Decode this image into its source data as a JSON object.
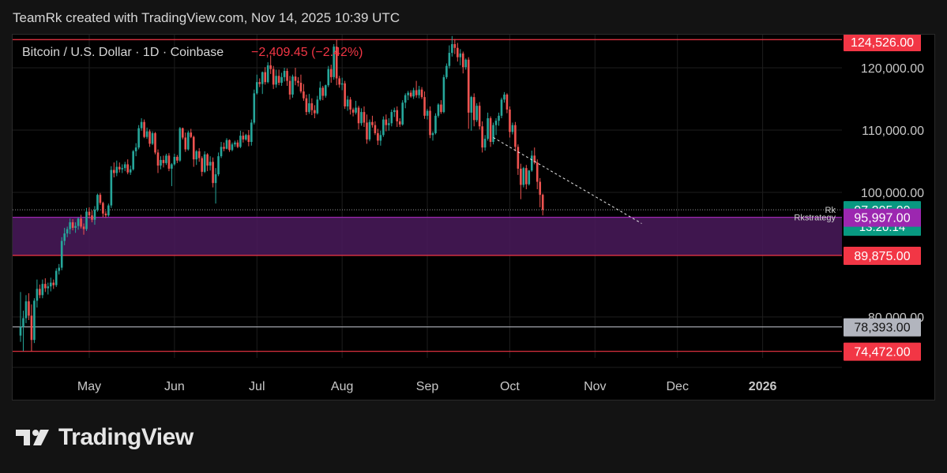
{
  "header": {
    "attribution": "TeamRk created with TradingView.com, Nov 14, 2025 10:39 UTC"
  },
  "footer": {
    "brand": "TradingView"
  },
  "colors": {
    "up": "#26a69a",
    "down": "#ef5350",
    "background": "#000000",
    "page": "#131313",
    "purple_zone": "#9c27b0",
    "grid": "#1e1e1e"
  },
  "chart_data": {
    "type": "candlestick",
    "legend": {
      "symbol": "Bitcoin / U.S. Dollar · 1D · Coinbase",
      "change": "−2,409.45 (−2.42%)"
    },
    "x_axis": {
      "ticks": [
        "May",
        "Jun",
        "Jul",
        "Aug",
        "Sep",
        "Oct",
        "Nov",
        "Dec",
        "2026"
      ],
      "bold_tick": "2026"
    },
    "y_axis": {
      "ticks": [
        "120,000.00",
        "110,000.00",
        "100,000.00",
        "80,000.00"
      ],
      "tick_values": [
        120000,
        110000,
        100000,
        80000
      ],
      "scale": "linear"
    },
    "price_labels": [
      {
        "value": 124526,
        "text": "124,526.00",
        "color": "#f23645",
        "line": true
      },
      {
        "value": 97205.09,
        "text": "97,205.09",
        "sub": "13:20:14",
        "color": "#089981",
        "line_label": "Rk",
        "dotted": true
      },
      {
        "value": 95997,
        "text": "95,997.00",
        "color": "#9c27b0",
        "line_label": "Rkstrategy",
        "zone_top": 95997,
        "zone_bottom": 89875
      },
      {
        "value": 89875,
        "text": "89,875.00",
        "color": "#f23645",
        "line": true
      },
      {
        "value": 78393,
        "text": "78,393.00",
        "color": "#b2b5be",
        "line": true
      },
      {
        "value": 74472,
        "text": "74,472.00",
        "color": "#f23645",
        "line": true
      }
    ],
    "trendline": {
      "from": [
        "2025-09-25",
        108800
      ],
      "to": [
        "2025-11-18",
        95000
      ],
      "style": "dashed"
    },
    "x_start": "2025-04-06",
    "ohlc": [
      [
        77000,
        84000,
        76000,
        78400
      ],
      [
        78400,
        81000,
        74500,
        79800
      ],
      [
        79800,
        83500,
        79000,
        82500
      ],
      [
        82500,
        83800,
        79500,
        80200
      ],
      [
        80200,
        82000,
        74472,
        76300
      ],
      [
        76300,
        83000,
        75800,
        82600
      ],
      [
        82600,
        86000,
        81500,
        84500
      ],
      [
        84500,
        85200,
        83000,
        83500
      ],
      [
        83500,
        86000,
        83000,
        85300
      ],
      [
        85300,
        86200,
        84000,
        84600
      ],
      [
        84600,
        85500,
        83600,
        84900
      ],
      [
        84900,
        86300,
        84100,
        85500
      ],
      [
        85500,
        86000,
        84500,
        85100
      ],
      [
        85100,
        87800,
        84800,
        87400
      ],
      [
        87400,
        88500,
        86800,
        87900
      ],
      [
        87900,
        92800,
        87500,
        92200
      ],
      [
        92200,
        94300,
        91500,
        93400
      ],
      [
        93400,
        94500,
        92800,
        94100
      ],
      [
        94100,
        95800,
        93300,
        95200
      ],
      [
        95200,
        95700,
        93900,
        94300
      ],
      [
        94300,
        95200,
        93500,
        94600
      ],
      [
        94600,
        96000,
        94000,
        95800
      ],
      [
        95800,
        96400,
        94200,
        94500
      ],
      [
        94500,
        95000,
        93200,
        94100
      ],
      [
        94100,
        97500,
        93800,
        96900
      ],
      [
        96900,
        97600,
        95800,
        96300
      ],
      [
        96300,
        97100,
        95200,
        95600
      ],
      [
        95600,
        97800,
        94800,
        97200
      ],
      [
        97200,
        99800,
        96900,
        99600
      ],
      [
        99600,
        99900,
        98000,
        98300
      ],
      [
        98300,
        98500,
        96000,
        96600
      ],
      [
        96600,
        97000,
        95900,
        96300
      ],
      [
        96300,
        98200,
        96100,
        97900
      ],
      [
        97900,
        104200,
        97500,
        103600
      ],
      [
        103600,
        104800,
        102400,
        103100
      ],
      [
        103100,
        105100,
        102600,
        104100
      ],
      [
        104100,
        104800,
        103200,
        103700
      ],
      [
        103700,
        104500,
        103100,
        103900
      ],
      [
        103900,
        104900,
        103400,
        104500
      ],
      [
        104500,
        105300,
        102900,
        103200
      ],
      [
        103200,
        104300,
        102800,
        103700
      ],
      [
        103700,
        106800,
        103500,
        106600
      ],
      [
        106600,
        107900,
        105800,
        107200
      ],
      [
        107200,
        110800,
        106900,
        110300
      ],
      [
        110300,
        111900,
        109900,
        111300
      ],
      [
        111300,
        111700,
        108700,
        108900
      ],
      [
        108900,
        110400,
        108600,
        109800
      ],
      [
        109800,
        110100,
        107300,
        107800
      ],
      [
        107800,
        109800,
        107600,
        109500
      ],
      [
        109500,
        109700,
        106100,
        106400
      ],
      [
        106400,
        106900,
        103100,
        104300
      ],
      [
        104300,
        105800,
        103700,
        105200
      ],
      [
        105200,
        105900,
        104000,
        104700
      ],
      [
        104700,
        106200,
        104400,
        105900
      ],
      [
        105900,
        106300,
        103400,
        103800
      ],
      [
        103800,
        104700,
        101000,
        104500
      ],
      [
        104500,
        106200,
        104300,
        105700
      ],
      [
        105700,
        106000,
        104700,
        105100
      ],
      [
        105100,
        110500,
        104900,
        110300
      ],
      [
        110300,
        110400,
        108500,
        108800
      ],
      [
        108800,
        109600,
        106500,
        106900
      ],
      [
        106900,
        109900,
        106700,
        109600
      ],
      [
        109600,
        110200,
        108700,
        108900
      ],
      [
        108900,
        109100,
        104100,
        105300
      ],
      [
        105300,
        106800,
        104400,
        106600
      ],
      [
        106600,
        107100,
        104900,
        105500
      ],
      [
        105500,
        105800,
        102600,
        103300
      ],
      [
        103300,
        106600,
        103100,
        106100
      ],
      [
        106100,
        106300,
        103400,
        104300
      ],
      [
        104300,
        105800,
        103500,
        104900
      ],
      [
        104900,
        105600,
        100800,
        101500
      ],
      [
        101500,
        103900,
        98200,
        102900
      ],
      [
        102900,
        106400,
        102600,
        105800
      ],
      [
        105800,
        108100,
        105500,
        107300
      ],
      [
        107300,
        108000,
        106600,
        107000
      ],
      [
        107000,
        108700,
        106900,
        108400
      ],
      [
        108400,
        108500,
        106500,
        106800
      ],
      [
        106800,
        108000,
        106600,
        107700
      ],
      [
        107700,
        108300,
        107300,
        108000
      ],
      [
        108000,
        108400,
        107100,
        107300
      ],
      [
        107300,
        109900,
        107100,
        109100
      ],
      [
        109100,
        109700,
        108000,
        108500
      ],
      [
        108500,
        109400,
        108300,
        109200
      ],
      [
        109200,
        110000,
        107400,
        108100
      ],
      [
        108100,
        111700,
        107500,
        111200
      ],
      [
        111200,
        116500,
        110900,
        115900
      ],
      [
        115900,
        118900,
        115700,
        117700
      ],
      [
        117700,
        118300,
        116900,
        117400
      ],
      [
        117400,
        119400,
        115800,
        119300
      ],
      [
        119300,
        120100,
        117300,
        117700
      ],
      [
        117700,
        120900,
        117500,
        120400
      ],
      [
        120400,
        122000,
        119000,
        119800
      ],
      [
        119800,
        120300,
        116600,
        117300
      ],
      [
        117300,
        119700,
        116800,
        118700
      ],
      [
        118700,
        119700,
        117200,
        117600
      ],
      [
        117600,
        119200,
        117100,
        118500
      ],
      [
        118500,
        120000,
        117800,
        119500
      ],
      [
        119500,
        119900,
        117100,
        117900
      ],
      [
        117900,
        118700,
        114900,
        115700
      ],
      [
        115700,
        118900,
        115200,
        118600
      ],
      [
        118600,
        120000,
        117200,
        117900
      ],
      [
        117900,
        118500,
        117000,
        117600
      ],
      [
        117600,
        118900,
        115900,
        116200
      ],
      [
        116200,
        117400,
        114700,
        115100
      ],
      [
        115100,
        115700,
        112400,
        112900
      ],
      [
        112900,
        115800,
        112600,
        114300
      ],
      [
        114300,
        115100,
        112400,
        113200
      ],
      [
        113200,
        114000,
        111900,
        112700
      ],
      [
        112700,
        115500,
        112500,
        114900
      ],
      [
        114900,
        117800,
        114700,
        116800
      ],
      [
        116800,
        117100,
        114800,
        115500
      ],
      [
        115500,
        117300,
        115200,
        117200
      ],
      [
        117200,
        120300,
        116900,
        119800
      ],
      [
        119800,
        120500,
        117600,
        118500
      ],
      [
        118500,
        123800,
        118100,
        123400
      ],
      [
        123400,
        124526,
        117200,
        118300
      ],
      [
        118300,
        118700,
        116800,
        117300
      ],
      [
        117300,
        118400,
        116400,
        117500
      ],
      [
        117500,
        117900,
        113400,
        113800
      ],
      [
        113800,
        115500,
        113100,
        114900
      ],
      [
        114900,
        115300,
        112500,
        113300
      ],
      [
        113300,
        113600,
        112200,
        112800
      ],
      [
        112800,
        114700,
        112500,
        113600
      ],
      [
        113600,
        113900,
        110100,
        111100
      ],
      [
        111100,
        113500,
        110700,
        112900
      ],
      [
        112900,
        113800,
        110500,
        111200
      ],
      [
        111200,
        112500,
        107800,
        108500
      ],
      [
        108500,
        111700,
        108200,
        111300
      ],
      [
        111300,
        112300,
        110400,
        110800
      ],
      [
        110800,
        111400,
        109200,
        109500
      ],
      [
        109500,
        110200,
        107600,
        108300
      ],
      [
        108300,
        109900,
        107500,
        109200
      ],
      [
        109200,
        112200,
        108900,
        111700
      ],
      [
        111700,
        112500,
        109800,
        110800
      ],
      [
        110800,
        111900,
        109900,
        111100
      ],
      [
        111100,
        113300,
        110600,
        112900
      ],
      [
        112900,
        113600,
        112100,
        113200
      ],
      [
        113200,
        113800,
        110500,
        111400
      ],
      [
        111400,
        111900,
        110500,
        110900
      ],
      [
        110900,
        114800,
        110700,
        114400
      ],
      [
        114400,
        115900,
        113500,
        115600
      ],
      [
        115600,
        116300,
        114800,
        116000
      ],
      [
        116000,
        116400,
        115200,
        115400
      ],
      [
        115400,
        116800,
        115000,
        116400
      ],
      [
        116400,
        117900,
        115200,
        115600
      ],
      [
        115600,
        117100,
        115100,
        116500
      ],
      [
        116500,
        116900,
        115000,
        115300
      ],
      [
        115300,
        116200,
        111800,
        112300
      ],
      [
        112300,
        113400,
        111700,
        113100
      ],
      [
        113100,
        113800,
        108700,
        109200
      ],
      [
        109200,
        109800,
        108300,
        109500
      ],
      [
        109500,
        112700,
        109300,
        112300
      ],
      [
        112300,
        114300,
        112000,
        114100
      ],
      [
        114100,
        114800,
        112600,
        112900
      ],
      [
        112900,
        118900,
        112700,
        118500
      ],
      [
        118500,
        120700,
        118200,
        120300
      ],
      [
        120300,
        123600,
        119900,
        122400
      ],
      [
        122400,
        125100,
        121800,
        123800
      ],
      [
        123800,
        124600,
        122200,
        123200
      ],
      [
        123200,
        124000,
        121000,
        121700
      ],
      [
        121700,
        123000,
        120400,
        122300
      ],
      [
        122300,
        122600,
        119100,
        120100
      ],
      [
        120100,
        121500,
        119700,
        121300
      ],
      [
        121300,
        121700,
        110200,
        112800
      ],
      [
        112800,
        115500,
        109900,
        115300
      ],
      [
        115300,
        115900,
        110600,
        111600
      ],
      [
        111600,
        114300,
        111300,
        113900
      ],
      [
        113900,
        114500,
        110100,
        110600
      ],
      [
        110600,
        111400,
        106400,
        107200
      ],
      [
        107200,
        109200,
        106700,
        108600
      ],
      [
        108600,
        112800,
        108300,
        111900
      ],
      [
        111900,
        112200,
        107300,
        108100
      ],
      [
        108100,
        111200,
        107700,
        110800
      ],
      [
        110800,
        111900,
        109200,
        111500
      ],
      [
        111500,
        112800,
        110700,
        112300
      ],
      [
        112300,
        115200,
        111900,
        114900
      ],
      [
        114900,
        116100,
        114400,
        115700
      ],
      [
        115700,
        115900,
        112700,
        113300
      ],
      [
        113300,
        113800,
        108800,
        109700
      ],
      [
        109700,
        111200,
        109300,
        110800
      ],
      [
        110800,
        111300,
        106600,
        107300
      ],
      [
        107300,
        107700,
        102800,
        103800
      ],
      [
        103800,
        104600,
        98900,
        101200
      ],
      [
        101200,
        104100,
        100800,
        103900
      ],
      [
        103900,
        104400,
        100500,
        101300
      ],
      [
        101300,
        103600,
        101100,
        103500
      ],
      [
        103500,
        106700,
        103300,
        105900
      ],
      [
        105900,
        107200,
        104500,
        104800
      ],
      [
        104800,
        105300,
        100500,
        101700
      ],
      [
        101700,
        102300,
        97600,
        99605
      ],
      [
        99605,
        99800,
        96300,
        97205
      ]
    ]
  }
}
